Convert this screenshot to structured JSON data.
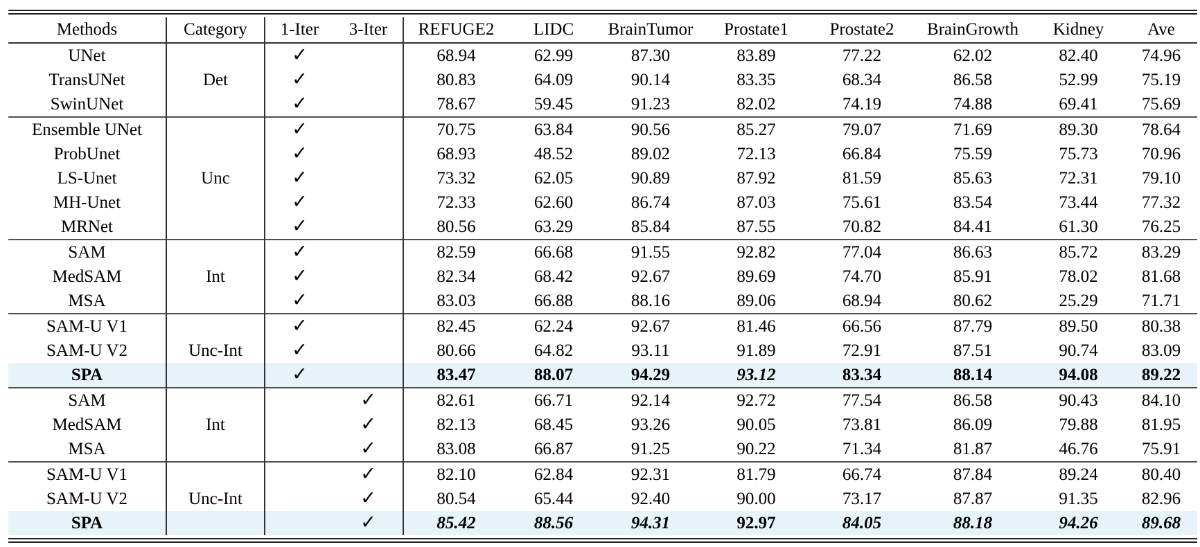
{
  "table": {
    "check_glyph": "✓",
    "highlight_color": "#e7f3f8",
    "line_color": "#222222",
    "columns": [
      "Methods",
      "Category",
      "1-Iter",
      "3-Iter",
      "REFUGE2",
      "LIDC",
      "BrainTumor",
      "Prostate1",
      "Prostate2",
      "BrainGrowth",
      "Kidney",
      "Ave"
    ],
    "rows": [
      {
        "method": "UNet",
        "category": "",
        "iter": 1,
        "values": [
          "68.94",
          "62.99",
          "87.30",
          "83.89",
          "77.22",
          "62.02",
          "82.40",
          "74.96"
        ]
      },
      {
        "method": "TransUNet",
        "category": "Det",
        "iter": 1,
        "values": [
          "80.83",
          "64.09",
          "90.14",
          "83.35",
          "68.34",
          "86.58",
          "52.99",
          "75.19"
        ]
      },
      {
        "method": "SwinUNet",
        "category": "",
        "iter": 1,
        "values": [
          "78.67",
          "59.45",
          "91.23",
          "82.02",
          "74.19",
          "74.88",
          "69.41",
          "75.69"
        ]
      },
      {
        "method": "Ensemble UNet",
        "category": "",
        "iter": 1,
        "block_start": true,
        "values": [
          "70.75",
          "63.84",
          "90.56",
          "85.27",
          "79.07",
          "71.69",
          "89.30",
          "78.64"
        ]
      },
      {
        "method": "ProbUnet",
        "category": "",
        "iter": 1,
        "values": [
          "68.93",
          "48.52",
          "89.02",
          "72.13",
          "66.84",
          "75.59",
          "75.73",
          "70.96"
        ]
      },
      {
        "method": "LS-Unet",
        "category": "Unc",
        "iter": 1,
        "values": [
          "73.32",
          "62.05",
          "90.89",
          "87.92",
          "81.59",
          "85.63",
          "72.31",
          "79.10"
        ]
      },
      {
        "method": "MH-Unet",
        "category": "",
        "iter": 1,
        "values": [
          "72.33",
          "62.60",
          "86.74",
          "87.03",
          "75.61",
          "83.54",
          "73.44",
          "77.32"
        ]
      },
      {
        "method": "MRNet",
        "category": "",
        "iter": 1,
        "values": [
          "80.56",
          "63.29",
          "85.84",
          "87.55",
          "70.82",
          "84.41",
          "61.30",
          "76.25"
        ]
      },
      {
        "method": "SAM",
        "category": "",
        "iter": 1,
        "block_start": true,
        "values": [
          "82.59",
          "66.68",
          "91.55",
          "92.82",
          "77.04",
          "86.63",
          "85.72",
          "83.29"
        ]
      },
      {
        "method": "MedSAM",
        "category": "Int",
        "iter": 1,
        "values": [
          "82.34",
          "68.42",
          "92.67",
          "89.69",
          "74.70",
          "85.91",
          "78.02",
          "81.68"
        ]
      },
      {
        "method": "MSA",
        "category": "",
        "iter": 1,
        "values": [
          "83.03",
          "66.88",
          "88.16",
          "89.06",
          "68.94",
          "80.62",
          "25.29",
          "71.71"
        ]
      },
      {
        "method": "SAM-U V1",
        "category": "",
        "iter": 1,
        "block_start": true,
        "values": [
          "82.45",
          "62.24",
          "92.67",
          "81.46",
          "66.56",
          "87.79",
          "89.50",
          "80.38"
        ]
      },
      {
        "method": "SAM-U V2",
        "category": "Unc-Int",
        "iter": 1,
        "values": [
          "80.66",
          "64.82",
          "93.11",
          "91.89",
          "72.91",
          "87.51",
          "90.74",
          "83.09"
        ]
      },
      {
        "method": "SPA",
        "category": "",
        "iter": 1,
        "highlight": true,
        "method_bold": true,
        "values": [
          "83.47",
          "88.07",
          "94.29",
          "93.12",
          "83.34",
          "88.14",
          "94.08",
          "89.22"
        ],
        "value_styles": [
          "b",
          "b",
          "b",
          "bi",
          "b",
          "b",
          "b",
          "b"
        ]
      },
      {
        "method": "SAM",
        "category": "",
        "iter": 3,
        "block_start": true,
        "values": [
          "82.61",
          "66.71",
          "92.14",
          "92.72",
          "77.54",
          "86.58",
          "90.43",
          "84.10"
        ]
      },
      {
        "method": "MedSAM",
        "category": "Int",
        "iter": 3,
        "values": [
          "82.13",
          "68.45",
          "93.26",
          "90.05",
          "73.81",
          "86.09",
          "79.88",
          "81.95"
        ]
      },
      {
        "method": "MSA",
        "category": "",
        "iter": 3,
        "values": [
          "83.08",
          "66.87",
          "91.25",
          "90.22",
          "71.34",
          "81.87",
          "46.76",
          "75.91"
        ]
      },
      {
        "method": "SAM-U V1",
        "category": "",
        "iter": 3,
        "block_start": true,
        "values": [
          "82.10",
          "62.84",
          "92.31",
          "81.79",
          "66.74",
          "87.84",
          "89.24",
          "80.40"
        ]
      },
      {
        "method": "SAM-U V2",
        "category": "Unc-Int",
        "iter": 3,
        "values": [
          "80.54",
          "65.44",
          "92.40",
          "90.00",
          "73.17",
          "87.87",
          "91.35",
          "82.96"
        ]
      },
      {
        "method": "SPA",
        "category": "",
        "iter": 3,
        "highlight": true,
        "method_bold": true,
        "values": [
          "85.42",
          "88.56",
          "94.31",
          "92.97",
          "84.05",
          "88.18",
          "94.26",
          "89.68"
        ],
        "value_styles": [
          "bi",
          "bi",
          "bi",
          "b",
          "bi",
          "bi",
          "bi",
          "bi"
        ]
      }
    ]
  }
}
